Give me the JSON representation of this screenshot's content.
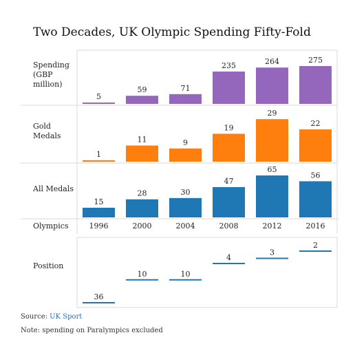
{
  "chart_data": {
    "type": "bar",
    "title": "Two Decades, UK Olympic Spending Fifty-Fold",
    "x_axis_label": "Olympics",
    "categories": [
      "1996",
      "2000",
      "2004",
      "2008",
      "2012",
      "2016"
    ],
    "series": [
      {
        "name": "Spending (GBP million)",
        "label_lines": [
          "Spending",
          "(GBP",
          "million)"
        ],
        "values": [
          5,
          59,
          71,
          235,
          264,
          275
        ],
        "color": "#9467bd",
        "ylim": [
          0,
          300
        ]
      },
      {
        "name": "Gold Medals",
        "label_lines": [
          "Gold",
          "Medals"
        ],
        "values": [
          1,
          11,
          9,
          19,
          29,
          22
        ],
        "color": "#ff7f0e",
        "ylim": [
          0,
          30
        ]
      },
      {
        "name": "All Medals",
        "label_lines": [
          "All Medals"
        ],
        "values": [
          15,
          28,
          30,
          47,
          65,
          56
        ],
        "color": "#1f77b4",
        "ylim": [
          0,
          65
        ]
      }
    ],
    "position_panel": {
      "name": "Position",
      "label_lines": [
        "Position"
      ],
      "values": [
        36,
        10,
        10,
        4,
        3,
        2
      ],
      "color": "#1f77b4",
      "marker": "dash",
      "scale": "rank"
    },
    "legend": "none",
    "grid": false
  },
  "footer": {
    "source_prefix": "Source: ",
    "source_link": "UK Sport",
    "note": "Note: spending on Paralympics excluded"
  }
}
